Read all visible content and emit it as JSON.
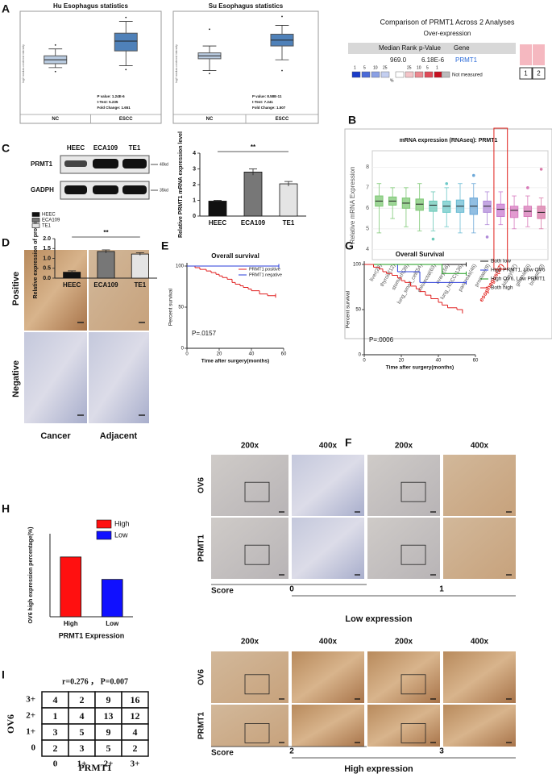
{
  "panel_labels": [
    "A",
    "B",
    "C",
    "D",
    "E",
    "F",
    "G",
    "H",
    "I"
  ],
  "chart_data": [
    {
      "type": "box",
      "title": "Hu Esophagus statistics",
      "y_label": "log2 median-centered intensity",
      "categories": [
        "NC",
        "ESCC"
      ],
      "colors": [
        "#b9cbe0",
        "#4f81b9"
      ],
      "ylim": [
        0,
        10
      ],
      "boxes": [
        {
          "min": 4.6,
          "q1": 5.0,
          "median": 5.4,
          "q3": 5.8,
          "max": 6.5,
          "outliers": [
            6.9,
            4.2
          ]
        },
        {
          "min": 4.8,
          "q1": 6.3,
          "median": 7.3,
          "q3": 8.1,
          "max": 9.3,
          "outliers": [
            9.7,
            4.4
          ]
        }
      ],
      "stats": [
        "P value: 1.24E-6",
        "t-Test: 5.235",
        "Fold Change: 1.651"
      ]
    },
    {
      "type": "box",
      "title": "Su Esophagus statistics",
      "y_label": "log2 median-centered intensity",
      "categories": [
        "NC",
        "ESCC"
      ],
      "colors": [
        "#b9cbe0",
        "#4f81b9"
      ],
      "ylim": [
        0,
        10
      ],
      "boxes": [
        {
          "min": 4.3,
          "q1": 5.5,
          "median": 5.8,
          "q3": 6.1,
          "max": 6.8,
          "outliers": [
            8.5,
            4.0
          ]
        },
        {
          "min": 5.4,
          "q1": 6.8,
          "median": 7.4,
          "q3": 8.0,
          "max": 8.9,
          "outliers": [
            9.8,
            4.3
          ]
        }
      ],
      "stats": [
        "P value: 8.58E-11",
        "t-Test: 7.241",
        "Fold Change: 1.507"
      ]
    },
    {
      "type": "box",
      "title": "mRNA expression (RNAseq): PRMT1",
      "y_label": "Relative mRNA Expression",
      "categories": [
        "liver(29)",
        "thyroid(12)",
        "stomach(39)",
        "lung_small_cell(54)",
        "colorectal(63)",
        "ovary(56)",
        "lung_NSCC(136)",
        "pancreas(46)",
        "prostate(8)",
        "esophagus(27)",
        "kidney(37)",
        "glioma(66)",
        "breast(60)"
      ],
      "colors": [
        "#7dc874",
        "#7dc874",
        "#7dc874",
        "#7dc874",
        "#6cc9b8",
        "#6cc9c8",
        "#6cbcd4",
        "#6ca8d8",
        "#b08ad8",
        "#c87ad0",
        "#d87ac0",
        "#d87ab8",
        "#d87aa8"
      ],
      "ylim": [
        3.5,
        8.8
      ],
      "yticks": [
        4,
        5,
        6,
        7,
        8
      ],
      "highlight_index": 9,
      "highlight_color": "#e0201b",
      "boxes": [
        {
          "min": 4.8,
          "q1": 6.1,
          "median": 6.35,
          "q3": 6.6,
          "max": 7.2,
          "outliers": []
        },
        {
          "min": 5.5,
          "q1": 6.15,
          "median": 6.35,
          "q3": 6.55,
          "max": 7.0,
          "outliers": []
        },
        {
          "min": 5.1,
          "q1": 6.0,
          "median": 6.25,
          "q3": 6.5,
          "max": 7.0,
          "outliers": []
        },
        {
          "min": 4.9,
          "q1": 5.9,
          "median": 6.2,
          "q3": 6.45,
          "max": 7.2,
          "outliers": []
        },
        {
          "min": 4.9,
          "q1": 5.85,
          "median": 6.15,
          "q3": 6.35,
          "max": 6.8,
          "outliers": [
            4.5
          ]
        },
        {
          "min": 5.1,
          "q1": 5.8,
          "median": 6.1,
          "q3": 6.35,
          "max": 7.0,
          "outliers": [
            7.2
          ]
        },
        {
          "min": 4.8,
          "q1": 5.8,
          "median": 6.1,
          "q3": 6.4,
          "max": 7.2,
          "outliers": []
        },
        {
          "min": 4.8,
          "q1": 5.7,
          "median": 6.1,
          "q3": 6.5,
          "max": 7.2,
          "outliers": [
            7.6
          ]
        },
        {
          "min": 5.2,
          "q1": 5.8,
          "median": 6.1,
          "q3": 6.35,
          "max": 6.8,
          "outliers": [
            4.6
          ]
        },
        {
          "min": 5.2,
          "q1": 5.6,
          "median": 5.95,
          "q3": 6.2,
          "max": 6.8,
          "outliers": []
        },
        {
          "min": 5.0,
          "q1": 5.55,
          "median": 5.9,
          "q3": 6.1,
          "max": 6.6,
          "outliers": []
        },
        {
          "min": 5.1,
          "q1": 5.6,
          "median": 5.85,
          "q3": 6.1,
          "max": 6.6,
          "outliers": [
            7.0
          ]
        },
        {
          "min": 5.0,
          "q1": 5.5,
          "median": 5.8,
          "q3": 6.1,
          "max": 6.5,
          "outliers": [
            7.9
          ]
        }
      ]
    },
    {
      "type": "bar",
      "y_label": "Relative PRMT1 mRNA expression level",
      "categories": [
        "HEEC",
        "ECA109",
        "TE1"
      ],
      "values": [
        0.95,
        2.8,
        2.05
      ],
      "errors": [
        0.05,
        0.2,
        0.15
      ],
      "colors": [
        "#111111",
        "#777777",
        "#e4e4e4"
      ],
      "ylim": [
        0,
        4
      ],
      "yticks": [
        0,
        1,
        2,
        3,
        4
      ],
      "significance": "**"
    },
    {
      "type": "bar",
      "y_label": "Relative expression of protein",
      "categories": [
        "HEEC",
        "ECA109",
        "TE1"
      ],
      "values": [
        0.3,
        1.35,
        1.22
      ],
      "errors": [
        0.07,
        0.08,
        0.07
      ],
      "colors": [
        "#111111",
        "#777777",
        "#e4e4e4"
      ],
      "ylim": [
        0,
        2
      ],
      "yticks": [
        {
          "value": 0,
          "label": "0.0"
        },
        0.5,
        {
          "value": 1,
          "label": "1.0"
        },
        1.5,
        {
          "value": 2,
          "label": "2.0"
        }
      ],
      "significance": "**",
      "legend": true
    },
    {
      "type": "line",
      "title": "Overall survival",
      "x_label": "Time after surgery(months)",
      "y_label": "Percent survival",
      "xlim": [
        0,
        60
      ],
      "xticks": [
        0,
        20,
        40,
        60
      ],
      "ylim": [
        0,
        100
      ],
      "yticks": [
        0,
        50,
        100
      ],
      "annotation": "P=.0157",
      "series": [
        {
          "name": "PRMT1 positive",
          "color": "#e02020",
          "x": [
            0,
            5,
            8,
            12,
            15,
            18,
            20,
            22,
            25,
            28,
            30,
            33,
            35,
            38,
            40,
            45,
            50,
            55
          ],
          "values": [
            100,
            98,
            96,
            94,
            92,
            90,
            88,
            86,
            84,
            80,
            78,
            76,
            74,
            72,
            70,
            66,
            64,
            64
          ]
        },
        {
          "name": "PRMT1 negative",
          "color": "#2a3cd8",
          "x": [
            0,
            57
          ],
          "values": [
            100,
            100
          ]
        }
      ]
    },
    {
      "type": "line",
      "title": "Overall Survival",
      "x_label": "Time after surgery(months)",
      "y_label": "Percent survival",
      "xlim": [
        0,
        60
      ],
      "xticks": [
        0,
        20,
        40,
        60
      ],
      "ylim": [
        0,
        100
      ],
      "yticks": [
        0,
        50,
        100
      ],
      "annotation": "P=.0006",
      "series": [
        {
          "name": "Both low",
          "color": "#111111",
          "x": [
            0,
            55
          ],
          "values": [
            100,
            100
          ]
        },
        {
          "name": "High PRMT1, Low OV6",
          "color": "#2a3cd8",
          "x": [
            0,
            18,
            30,
            55
          ],
          "values": [
            100,
            92,
            80,
            80
          ]
        },
        {
          "name": "High OV6, Low PRMT1",
          "color": "#1a9a1a",
          "x": [
            0,
            42,
            55
          ],
          "values": [
            100,
            90,
            90
          ]
        },
        {
          "name": "Both high",
          "color": "#e02020",
          "x": [
            0,
            5,
            8,
            10,
            12,
            15,
            18,
            20,
            22,
            25,
            28,
            30,
            33,
            36,
            40,
            42,
            45,
            50,
            53
          ],
          "values": [
            100,
            97,
            95,
            92,
            90,
            88,
            85,
            82,
            80,
            76,
            73,
            70,
            66,
            62,
            58,
            55,
            52,
            50,
            48
          ]
        }
      ]
    },
    {
      "type": "bar",
      "y_label": "OV6 high expression percentage(%)",
      "x_label": "PRMT1 Expression",
      "categories": [
        "High",
        "Low"
      ],
      "values": [
        72,
        45
      ],
      "colors": [
        "#ff1010",
        "#1010ff"
      ],
      "ylim": [
        0,
        100
      ],
      "legend": true
    }
  ],
  "oncomine": {
    "title": "Comparison of PRMT1 Across 2 Analyses",
    "subtitle": "Over-expression",
    "headers": [
      "Median Rank",
      "p-Value",
      "Gene"
    ],
    "row": [
      "969.0",
      "6.18E-6",
      "PRMT1"
    ],
    "scale_low": [
      "1",
      "5",
      "10",
      "25"
    ],
    "scale_high": [
      "25",
      "10",
      "5",
      "1"
    ],
    "scale_unit": "%",
    "not_measured": "Not measured",
    "analyses": [
      "1",
      "2"
    ]
  },
  "western": {
    "samples": [
      "HEEC",
      "ECA109",
      "TE1"
    ],
    "proteins": [
      "PRMT1",
      "GADPH"
    ],
    "sizes": [
      "40kd",
      "35kd"
    ]
  },
  "ihc_d": {
    "rows": [
      "Positive",
      "Negative"
    ],
    "cols": [
      "Cancer",
      "Adjacent"
    ]
  },
  "ihc_grid": {
    "magnifications": [
      "200x",
      "400x",
      "200x",
      "400x"
    ],
    "markers": [
      "OV6",
      "PRMT1"
    ],
    "score_label": "Score",
    "scores": [
      "0",
      "1",
      "2",
      "3"
    ],
    "groups": [
      "Low expression",
      "High expression"
    ]
  },
  "correlation": {
    "stat": "r=0.276 ， P=0.007",
    "row_label": "OV6",
    "col_label": "PRMT1",
    "rows": [
      "3+",
      "2+",
      "1+",
      "0"
    ],
    "cols": [
      "0",
      "1+",
      "2+",
      "3+"
    ],
    "counts": [
      [
        4,
        2,
        9,
        16
      ],
      [
        1,
        4,
        13,
        12
      ],
      [
        3,
        5,
        9,
        4
      ],
      [
        2,
        3,
        5,
        2
      ]
    ]
  }
}
